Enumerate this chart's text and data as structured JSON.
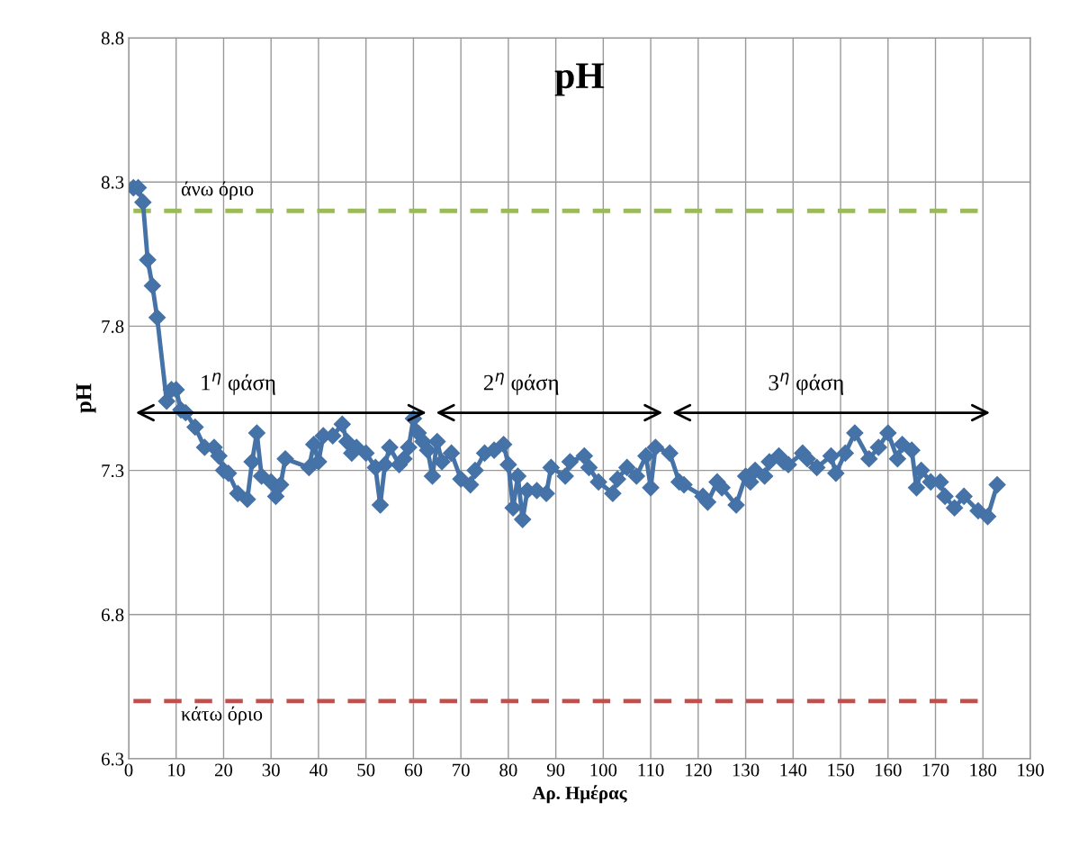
{
  "chart_data": {
    "type": "line",
    "title": "pH",
    "xlabel": "Αρ. Ημέρας",
    "ylabel": "pH",
    "xlim": [
      0,
      190
    ],
    "xticks": [
      0,
      10,
      20,
      30,
      40,
      50,
      60,
      70,
      80,
      90,
      100,
      110,
      120,
      130,
      140,
      150,
      160,
      170,
      180,
      190
    ],
    "ylim": [
      6.3,
      8.8
    ],
    "yticks": [
      6.3,
      6.8,
      7.3,
      7.8,
      8.3,
      8.8
    ],
    "grid": true,
    "marker": "diamond",
    "line_style": "solid",
    "legend": false,
    "series": [
      {
        "color": "#4572a7",
        "x": [
          1,
          2,
          3,
          4,
          5,
          6,
          8,
          9,
          10,
          11,
          12,
          14,
          16,
          18,
          19,
          20,
          21,
          23,
          25,
          26,
          27,
          28,
          30,
          31,
          32,
          33,
          38,
          39,
          40,
          41,
          43,
          45,
          46,
          47,
          48,
          50,
          52,
          53,
          54,
          55,
          57,
          58,
          59,
          60,
          61,
          62,
          63,
          64,
          65,
          66,
          68,
          70,
          72,
          73,
          75,
          77,
          79,
          80,
          81,
          82,
          83,
          84,
          86,
          88,
          89,
          92,
          93,
          96,
          97,
          99,
          102,
          103,
          105,
          107,
          109,
          110,
          111,
          114,
          116,
          117,
          121,
          122,
          124,
          125,
          128,
          130,
          131,
          132,
          134,
          135,
          137,
          138,
          139,
          142,
          143,
          145,
          148,
          149,
          151,
          153,
          156,
          158,
          160,
          162,
          163,
          165,
          166,
          167,
          169,
          171,
          172,
          174,
          176,
          179,
          181,
          183
        ],
        "values": [
          8.28,
          8.28,
          8.23,
          8.03,
          7.94,
          7.83,
          7.54,
          7.58,
          7.58,
          7.51,
          7.5,
          7.45,
          7.38,
          7.38,
          7.35,
          7.3,
          7.29,
          7.22,
          7.2,
          7.33,
          7.43,
          7.28,
          7.26,
          7.21,
          7.25,
          7.34,
          7.31,
          7.39,
          7.33,
          7.42,
          7.42,
          7.46,
          7.4,
          7.36,
          7.38,
          7.36,
          7.31,
          7.18,
          7.32,
          7.38,
          7.32,
          7.34,
          7.38,
          7.48,
          7.43,
          7.4,
          7.37,
          7.28,
          7.4,
          7.33,
          7.36,
          7.27,
          7.25,
          7.3,
          7.36,
          7.37,
          7.39,
          7.32,
          7.17,
          7.28,
          7.13,
          7.23,
          7.23,
          7.22,
          7.31,
          7.28,
          7.33,
          7.35,
          7.31,
          7.26,
          7.22,
          7.27,
          7.31,
          7.28,
          7.35,
          7.24,
          7.38,
          7.36,
          7.26,
          7.25,
          7.21,
          7.19,
          7.26,
          7.24,
          7.18,
          7.28,
          7.26,
          7.3,
          7.28,
          7.33,
          7.35,
          7.33,
          7.32,
          7.36,
          7.34,
          7.31,
          7.35,
          7.29,
          7.36,
          7.43,
          7.34,
          7.38,
          7.43,
          7.34,
          7.39,
          7.37,
          7.24,
          7.3,
          7.26,
          7.26,
          7.21,
          7.17,
          7.21,
          7.16,
          7.14,
          7.25
        ]
      }
    ],
    "ref_lines": [
      {
        "axis": "y",
        "value": 8.2,
        "label": "άνω όριο",
        "color": "#9bbb59",
        "line_style": "dashed"
      },
      {
        "axis": "y",
        "value": 6.5,
        "label": "κάτω όριο",
        "color": "#c0504d",
        "line_style": "dashed"
      }
    ],
    "annotations": [
      "1$^{η}$ φάση",
      "2$^{η}$ φάση",
      "3$^{η}$ φάση"
    ]
  }
}
